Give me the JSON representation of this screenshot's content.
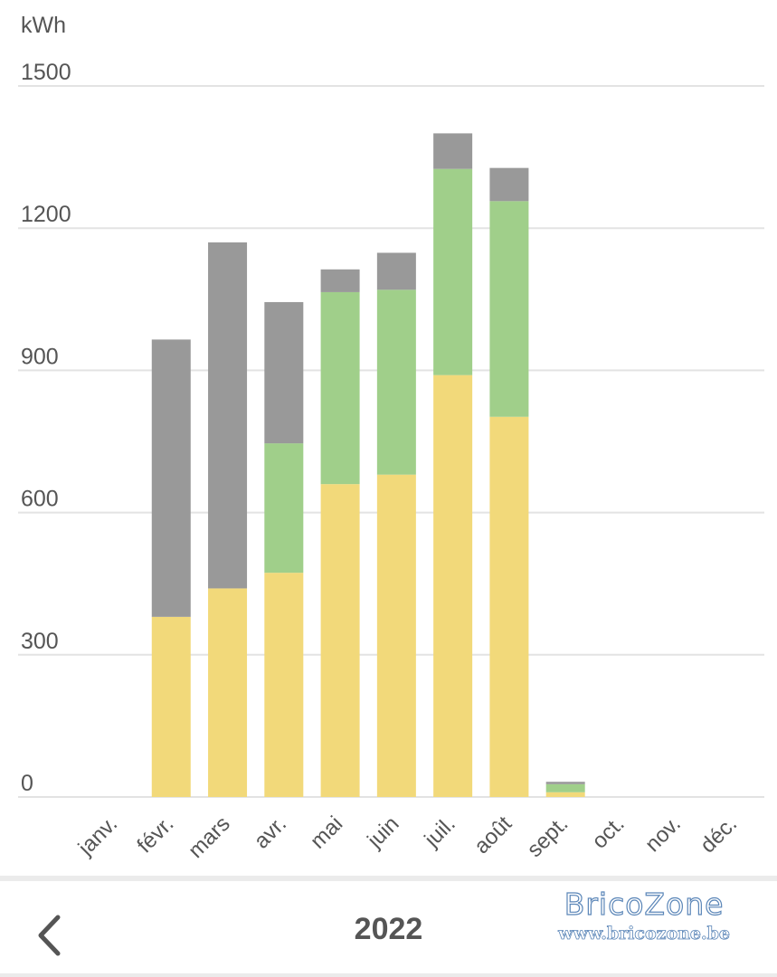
{
  "chart_data": {
    "type": "bar",
    "stacked": true,
    "unit": "kWh",
    "categories": [
      "janv.",
      "févr.",
      "mars",
      "avr.",
      "mai",
      "juin",
      "juil.",
      "août",
      "sept.",
      "oct.",
      "nov.",
      "déc."
    ],
    "yticks": [
      "0",
      "300",
      "600",
      "900",
      "1200",
      "1500"
    ],
    "ylim": [
      0,
      1500
    ],
    "grid": true,
    "legend": "none",
    "series": [
      {
        "color": "#f2d97a",
        "values": [
          0,
          380,
          440,
          473,
          660,
          680,
          890,
          802,
          10,
          0,
          0,
          0
        ]
      },
      {
        "color": "#a0cf8a",
        "values": [
          0,
          0,
          0,
          273,
          405,
          390,
          435,
          455,
          17,
          0,
          0,
          0
        ]
      },
      {
        "color": "#999999",
        "values": [
          0,
          585,
          730,
          298,
          48,
          78,
          75,
          70,
          5,
          0,
          0,
          0
        ]
      }
    ]
  },
  "footer": {
    "year": "2022",
    "back_icon": "chevron-left-icon"
  },
  "watermark": {
    "brand": "BricoZone",
    "url": "www.bricozone.be"
  },
  "colors": {
    "axis_text": "#555555",
    "grid": "#e3e3e3"
  }
}
